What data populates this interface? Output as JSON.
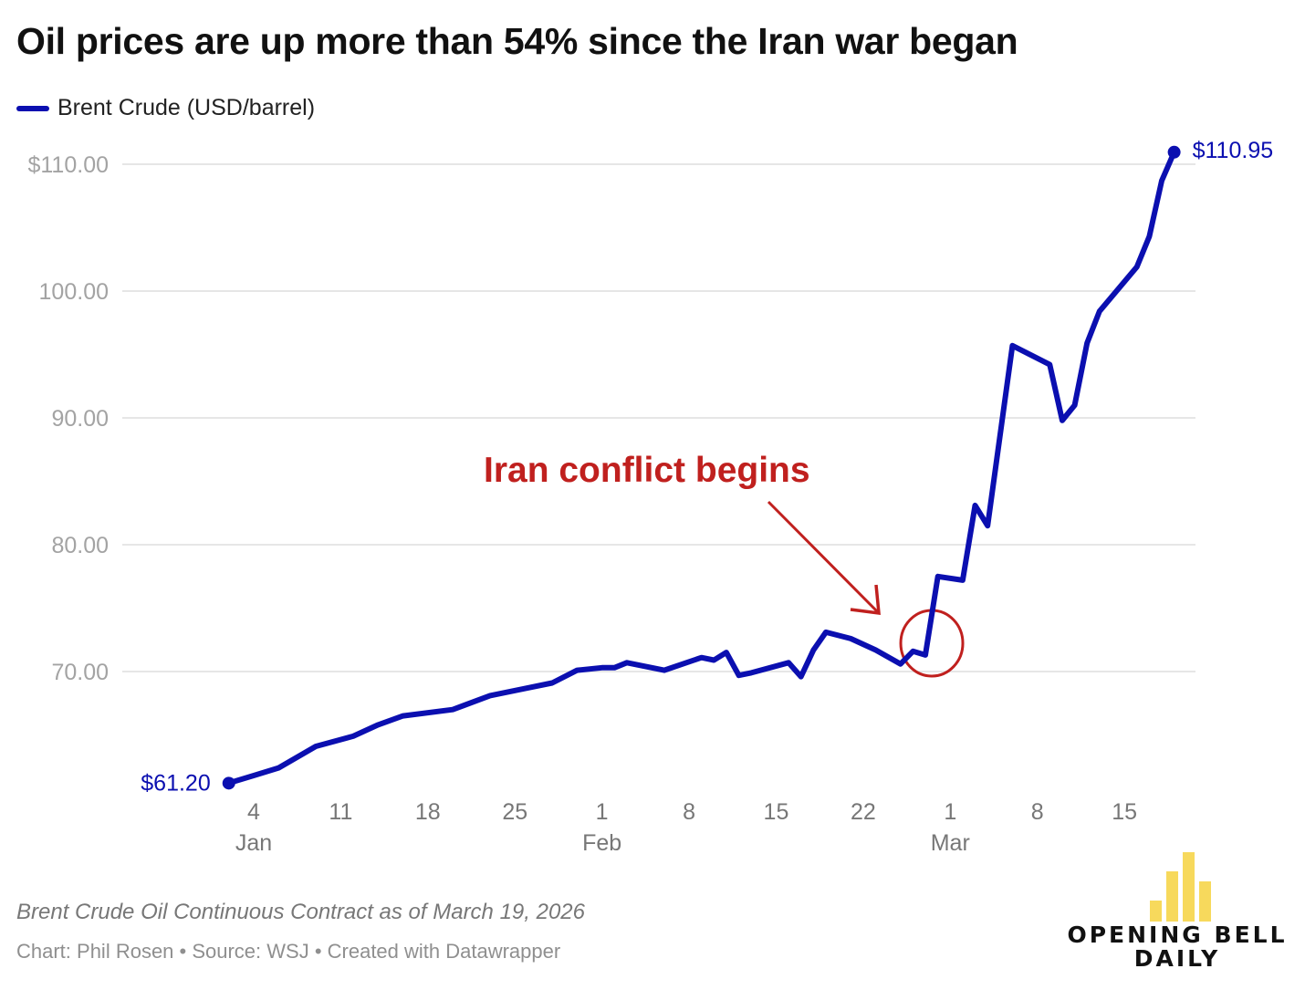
{
  "title": "Oil prices are up more than 54% since the Iran war began",
  "legend": {
    "label": "Brent Crude (USD/barrel)",
    "color": "#0b0fb0"
  },
  "colors": {
    "series": "#0b0fb0",
    "annotation": "#c0201e",
    "gridline": "#e6e6e6",
    "logo_bars": "#f7d95c"
  },
  "chart_data": {
    "type": "line",
    "title": "Oil prices are up more than 54% since the Iran war began",
    "xlabel": "",
    "ylabel": "",
    "ylim": [
      60,
      112
    ],
    "yticks": [
      70,
      80,
      90,
      100,
      110
    ],
    "ytick_labels": [
      "70.00",
      "80.00",
      "90.00",
      "100.00",
      "$110.00"
    ],
    "grid": true,
    "legend_position": "top-left",
    "x_axis": {
      "start": "2026-01-02",
      "end": "2026-03-19",
      "ticks": [
        {
          "date": "2026-01-04",
          "day": "4",
          "month": "Jan"
        },
        {
          "date": "2026-01-11",
          "day": "11",
          "month": ""
        },
        {
          "date": "2026-01-18",
          "day": "18",
          "month": ""
        },
        {
          "date": "2026-01-25",
          "day": "25",
          "month": ""
        },
        {
          "date": "2026-02-01",
          "day": "1",
          "month": "Feb"
        },
        {
          "date": "2026-02-08",
          "day": "8",
          "month": ""
        },
        {
          "date": "2026-02-15",
          "day": "15",
          "month": ""
        },
        {
          "date": "2026-02-22",
          "day": "22",
          "month": ""
        },
        {
          "date": "2026-03-01",
          "day": "1",
          "month": "Mar"
        },
        {
          "date": "2026-03-08",
          "day": "8",
          "month": ""
        },
        {
          "date": "2026-03-15",
          "day": "15",
          "month": ""
        }
      ]
    },
    "series": [
      {
        "name": "Brent Crude (USD/barrel)",
        "points": [
          {
            "date": "2026-01-02",
            "value": 61.2
          },
          {
            "date": "2026-01-04",
            "value": 61.8
          },
          {
            "date": "2026-01-06",
            "value": 62.4
          },
          {
            "date": "2026-01-09",
            "value": 64.1
          },
          {
            "date": "2026-01-12",
            "value": 64.9
          },
          {
            "date": "2026-01-14",
            "value": 65.8
          },
          {
            "date": "2026-01-16",
            "value": 66.5
          },
          {
            "date": "2026-01-20",
            "value": 67.0
          },
          {
            "date": "2026-01-23",
            "value": 68.1
          },
          {
            "date": "2026-01-26",
            "value": 68.7
          },
          {
            "date": "2026-01-28",
            "value": 69.1
          },
          {
            "date": "2026-01-30",
            "value": 70.1
          },
          {
            "date": "2026-02-01",
            "value": 70.3
          },
          {
            "date": "2026-02-02",
            "value": 70.3
          },
          {
            "date": "2026-02-03",
            "value": 70.7
          },
          {
            "date": "2026-02-06",
            "value": 70.1
          },
          {
            "date": "2026-02-09",
            "value": 71.1
          },
          {
            "date": "2026-02-10",
            "value": 70.9
          },
          {
            "date": "2026-02-11",
            "value": 71.5
          },
          {
            "date": "2026-02-12",
            "value": 69.7
          },
          {
            "date": "2026-02-13",
            "value": 69.9
          },
          {
            "date": "2026-02-16",
            "value": 70.7
          },
          {
            "date": "2026-02-17",
            "value": 69.6
          },
          {
            "date": "2026-02-18",
            "value": 71.7
          },
          {
            "date": "2026-02-19",
            "value": 73.1
          },
          {
            "date": "2026-02-21",
            "value": 72.6
          },
          {
            "date": "2026-02-23",
            "value": 71.7
          },
          {
            "date": "2026-02-25",
            "value": 70.6
          },
          {
            "date": "2026-02-26",
            "value": 71.6
          },
          {
            "date": "2026-02-27",
            "value": 71.3
          },
          {
            "date": "2026-02-28",
            "value": 77.5
          },
          {
            "date": "2026-03-02",
            "value": 77.2
          },
          {
            "date": "2026-03-03",
            "value": 83.1
          },
          {
            "date": "2026-03-04",
            "value": 81.5
          },
          {
            "date": "2026-03-06",
            "value": 95.7
          },
          {
            "date": "2026-03-09",
            "value": 94.2
          },
          {
            "date": "2026-03-10",
            "value": 89.8
          },
          {
            "date": "2026-03-11",
            "value": 91.0
          },
          {
            "date": "2026-03-12",
            "value": 95.9
          },
          {
            "date": "2026-03-13",
            "value": 98.4
          },
          {
            "date": "2026-03-16",
            "value": 101.9
          },
          {
            "date": "2026-03-17",
            "value": 104.3
          },
          {
            "date": "2026-03-18",
            "value": 108.7
          },
          {
            "date": "2026-03-19",
            "value": 110.95
          }
        ]
      }
    ],
    "end_labels": {
      "start": "$61.20",
      "end": "$110.95"
    },
    "annotations": [
      {
        "text": "Iran conflict begins",
        "target_date": "2026-02-27",
        "target_value": 71.8,
        "marker": "circle-with-arrow"
      }
    ]
  },
  "footer": {
    "note": "Brent Crude Oil Continuous Contract as of March 19, 2026",
    "credit": "Chart: Phil Rosen • Source: WSJ • Created with Datawrapper"
  },
  "logo": {
    "line1": "OPENING BELL",
    "line2": "DAILY",
    "bar_heights": [
      0.3,
      0.72,
      1.0,
      0.58
    ]
  }
}
